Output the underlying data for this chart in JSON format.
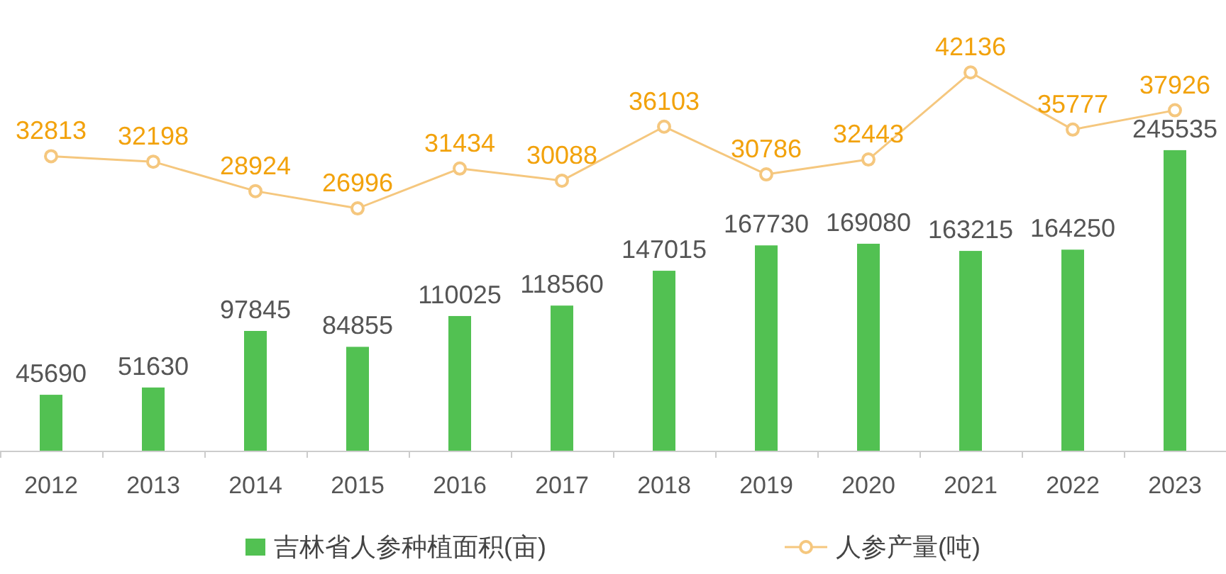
{
  "chart_data": {
    "type": "bar",
    "categories": [
      "2012",
      "2013",
      "2014",
      "2015",
      "2016",
      "2017",
      "2018",
      "2019",
      "2020",
      "2021",
      "2022",
      "2023"
    ],
    "series": [
      {
        "name": "吉林省人参种植面积(亩)",
        "color": "#52c152",
        "values": [
          45690,
          51630,
          97845,
          84855,
          110025,
          118560,
          147015,
          167730,
          169080,
          163215,
          164250,
          245535
        ]
      },
      {
        "name": "人参产量(吨)",
        "type": "line",
        "axis": "y2",
        "color": "#f5c77e",
        "values": [
          32813,
          32198,
          28924,
          26996,
          31434,
          30088,
          36103,
          30786,
          32443,
          42136,
          35777,
          37926
        ]
      }
    ],
    "tick_labels": "x",
    "data_labels": true,
    "legend": "bottom",
    "marker": "circle"
  }
}
